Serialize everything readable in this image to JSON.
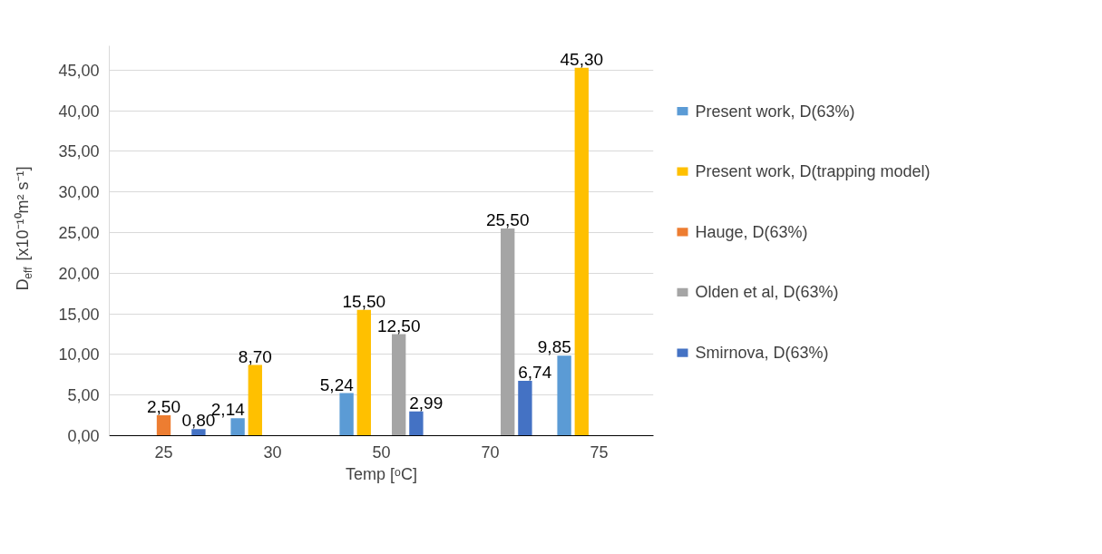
{
  "chart_data": {
    "type": "bar",
    "xlabel": "Temp [ᵒC]",
    "ylabel": "D$_{eff}$ [x10⁻¹⁰m² s⁻¹]",
    "categories": [
      "25",
      "30",
      "50",
      "70",
      "75"
    ],
    "ylim": [
      0,
      48
    ],
    "yticks": [
      {
        "value": 0,
        "label": "0,00"
      },
      {
        "value": 5,
        "label": "5,00"
      },
      {
        "value": 10,
        "label": "10,00"
      },
      {
        "value": 15,
        "label": "15,00"
      },
      {
        "value": 20,
        "label": "20,00"
      },
      {
        "value": 25,
        "label": "25,00"
      },
      {
        "value": 30,
        "label": "30,00"
      },
      {
        "value": 35,
        "label": "35,00"
      },
      {
        "value": 40,
        "label": "40,00"
      },
      {
        "value": 45,
        "label": "45,00"
      }
    ],
    "grid": "y",
    "legend": "right",
    "series": [
      {
        "name": "Present work, D(63%)",
        "color": "#5b9bd5",
        "values": [
          null,
          2.14,
          5.24,
          null,
          9.85
        ],
        "value_labels": [
          null,
          "2,14",
          "5,24",
          null,
          "9,85"
        ]
      },
      {
        "name": "Present work, D(trapping model)",
        "color": "#ffc000",
        "values": [
          null,
          8.7,
          15.5,
          null,
          45.3
        ],
        "value_labels": [
          null,
          "8,70",
          "15,50",
          null,
          "45,30"
        ]
      },
      {
        "name": "Hauge, D(63%)",
        "color": "#ed7d31",
        "values": [
          2.5,
          null,
          null,
          null,
          null
        ],
        "value_labels": [
          "2,50",
          null,
          null,
          null,
          null
        ]
      },
      {
        "name": "Olden et al, D(63%)",
        "color": "#a5a5a5",
        "values": [
          null,
          null,
          12.5,
          25.5,
          null
        ],
        "value_labels": [
          null,
          null,
          "12,50",
          "25,50",
          null
        ]
      },
      {
        "name": "Smirnova, D(63%)",
        "color": "#4472c4",
        "values": [
          0.8,
          null,
          2.99,
          6.74,
          null
        ],
        "value_labels": [
          "0,80",
          null,
          "2,99",
          "6,74",
          null
        ]
      }
    ]
  }
}
